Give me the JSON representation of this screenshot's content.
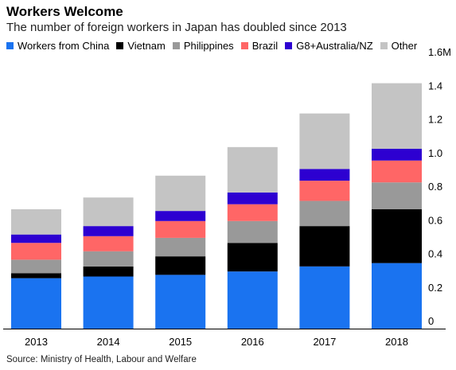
{
  "header": {
    "title": "Workers Welcome",
    "subtitle": "The number of foreign workers in Japan has doubled since 2013"
  },
  "footer": {
    "source": "Source: Ministry of Health, Labour and Welfare"
  },
  "chart_data": {
    "type": "bar",
    "stacked": true,
    "title": "Workers Welcome",
    "subtitle": "The number of foreign workers in Japan has doubled since 2013",
    "categories": [
      "2013",
      "2014",
      "2015",
      "2016",
      "2017",
      "2018"
    ],
    "series": [
      {
        "name": "Workers from China",
        "color": "#1a73f0",
        "values": [
          0.3,
          0.31,
          0.32,
          0.34,
          0.37,
          0.39
        ]
      },
      {
        "name": "Vietnam",
        "color": "#000000",
        "values": [
          0.03,
          0.06,
          0.11,
          0.17,
          0.24,
          0.32
        ]
      },
      {
        "name": "Philippines",
        "color": "#999999",
        "values": [
          0.08,
          0.09,
          0.11,
          0.13,
          0.15,
          0.16
        ]
      },
      {
        "name": "Brazil",
        "color": "#ff6666",
        "values": [
          0.1,
          0.09,
          0.1,
          0.1,
          0.12,
          0.13
        ]
      },
      {
        "name": "G8+Australia/NZ",
        "color": "#2d00d1",
        "values": [
          0.05,
          0.06,
          0.06,
          0.07,
          0.07,
          0.07
        ]
      },
      {
        "name": "Other",
        "color": "#c4c4c4",
        "values": [
          0.15,
          0.17,
          0.21,
          0.27,
          0.33,
          0.39
        ]
      }
    ],
    "yaxis": {
      "ticks": [
        0,
        0.2,
        0.4,
        0.6,
        0.8,
        1.0,
        1.2,
        1.4,
        1.6
      ],
      "tick_labels": [
        "0",
        "0.2",
        "0.4",
        "0.6",
        "0.8",
        "1.0",
        "1.2",
        "1.4",
        "1.6M"
      ],
      "position": "right"
    },
    "ylim": [
      0,
      1.6
    ],
    "xlabel": "",
    "ylabel": "",
    "grid": false,
    "legend_position": "top"
  }
}
